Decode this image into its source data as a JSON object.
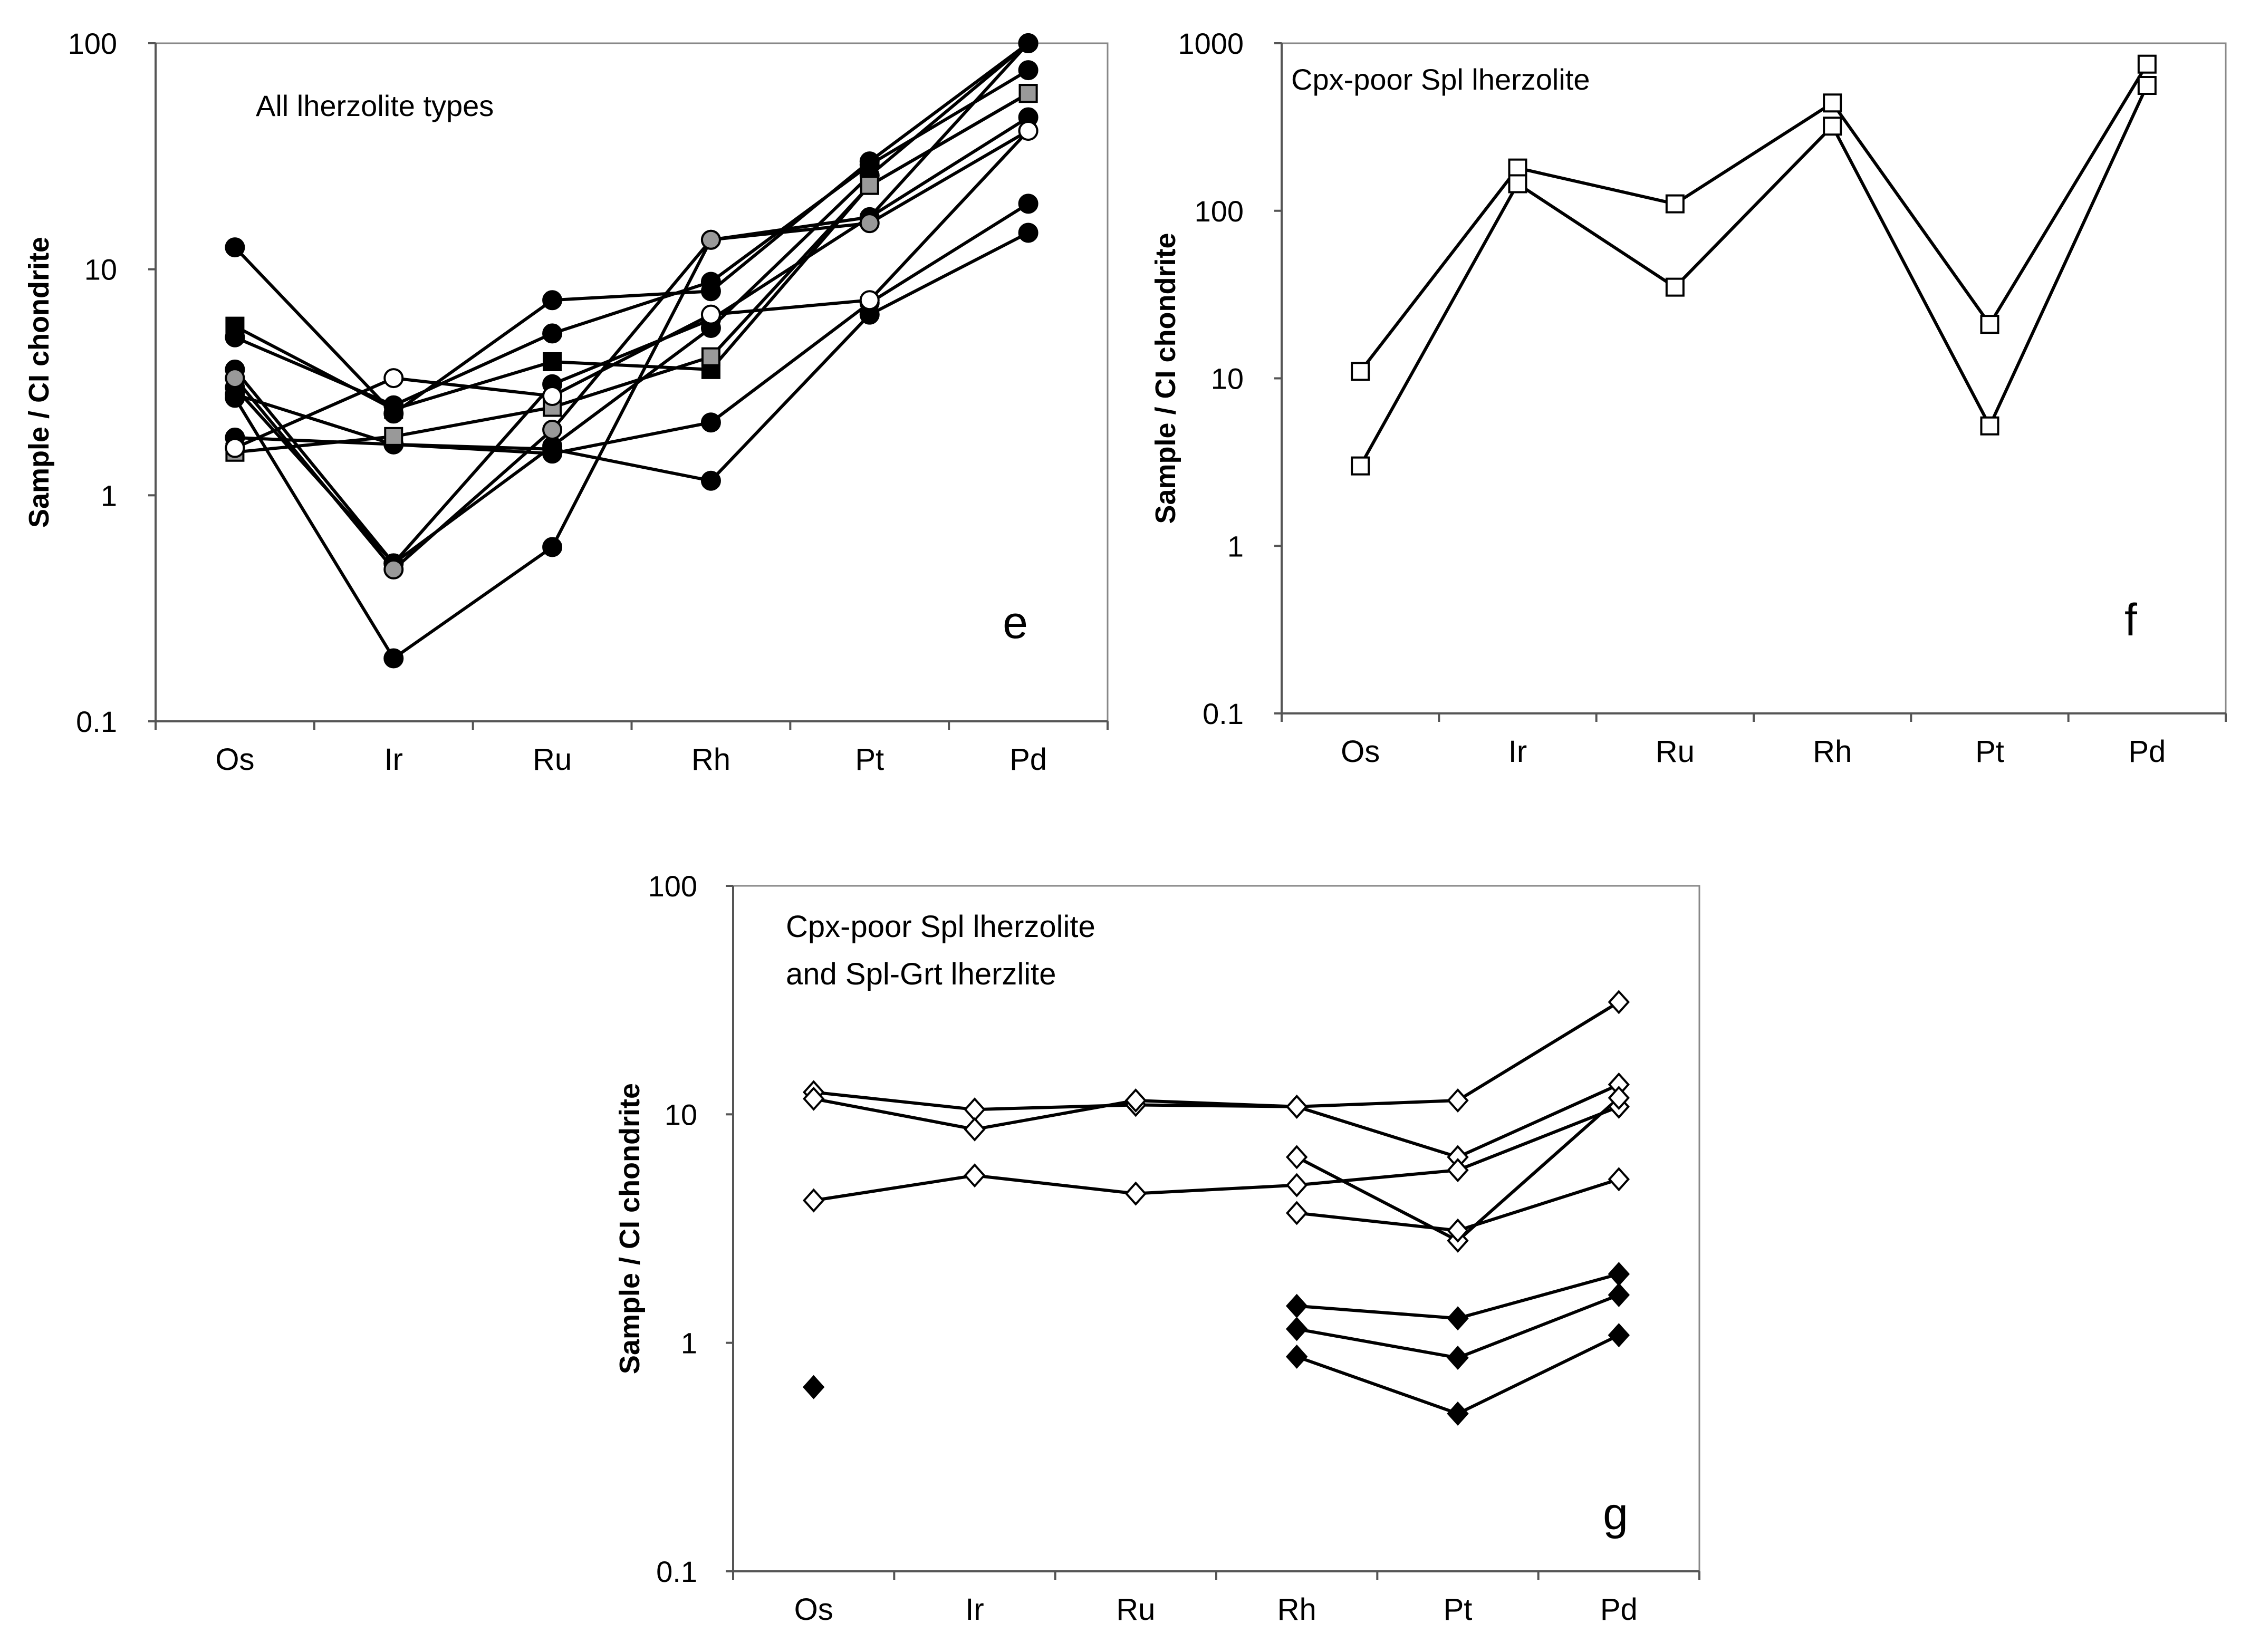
{
  "chart_data": [
    {
      "panel_id": "e",
      "type": "line",
      "scale": "log",
      "title": "All lherzolite types",
      "panel_letter": "e",
      "ylabel": "Sample / CI chondrite",
      "xlabel": "",
      "categories": [
        "Os",
        "Ir",
        "Ru",
        "Rh",
        "Pt",
        "Pd"
      ],
      "ylim": [
        0.1,
        100
      ],
      "yticks": [
        0.1,
        1,
        10,
        100
      ],
      "ytick_labels": [
        "0.1",
        "1",
        "10",
        "100"
      ],
      "grid": false,
      "legend": "none",
      "series": [
        {
          "name": "e1",
          "marker": "circle",
          "fill": "#000000",
          "values": [
            12.5,
            2.3,
            7.3,
            8.0,
            30,
            100
          ]
        },
        {
          "name": "e2",
          "marker": "circle",
          "fill": "#000000",
          "values": [
            5.0,
            2.5,
            5.2,
            8.8,
            29,
            76
          ]
        },
        {
          "name": "e3",
          "marker": "circle",
          "fill": "#000000",
          "values": [
            3.6,
            0.5,
            1.65,
            5.5,
            26,
            100
          ]
        },
        {
          "name": "e4",
          "marker": "circle",
          "fill": "#000000",
          "values": [
            3.0,
            0.5,
            3.1,
            6.0,
            17,
            100
          ]
        },
        {
          "name": "e5",
          "marker": "circle",
          "fill": "#000000",
          "values": [
            2.7,
            0.19,
            0.59,
            13.5,
            17,
            47
          ]
        },
        {
          "name": "e6",
          "marker": "circle",
          "fill": "#000000",
          "values": [
            2.8,
            1.68,
            1.53,
            2.1,
            7.1,
            19.5
          ]
        },
        {
          "name": "e7",
          "marker": "circle",
          "fill": "#000000",
          "values": [
            1.8,
            1.68,
            1.6,
            1.16,
            6.3,
            14.5
          ]
        },
        {
          "name": "e8",
          "marker": "circle",
          "fill": "#999999",
          "values": [
            3.3,
            0.47,
            1.95,
            13.5,
            16,
            41
          ]
        },
        {
          "name": "e9",
          "marker": "square",
          "fill": "#000000",
          "values": [
            5.6,
            2.4,
            3.9,
            3.6,
            23.5,
            60
          ]
        },
        {
          "name": "e10",
          "marker": "square",
          "fill": "#999999",
          "values": [
            1.55,
            1.82,
            2.45,
            4.1,
            23.5,
            60
          ]
        },
        {
          "name": "e11",
          "marker": "circle",
          "fill": "#ffffff",
          "values": [
            1.62,
            3.3,
            2.75,
            6.3,
            7.3,
            41
          ]
        }
      ]
    },
    {
      "panel_id": "f",
      "type": "line",
      "scale": "log",
      "title": "Cpx-poor Spl lherzolite",
      "panel_letter": "f",
      "ylabel": "Sample / CI chondrite",
      "xlabel": "",
      "categories": [
        "Os",
        "Ir",
        "Ru",
        "Rh",
        "Pt",
        "Pd"
      ],
      "ylim": [
        0.1,
        1000
      ],
      "yticks": [
        0.1,
        1,
        10,
        100,
        1000
      ],
      "ytick_labels": [
        "0.1",
        "1",
        "10",
        "100",
        "1000"
      ],
      "grid": false,
      "legend": "none",
      "series": [
        {
          "name": "f1",
          "marker": "square",
          "fill": "#ffffff",
          "values": [
            11,
            180,
            110,
            440,
            21,
            750
          ]
        },
        {
          "name": "f2",
          "marker": "square",
          "fill": "#ffffff",
          "values": [
            3.0,
            145,
            35,
            320,
            5.2,
            560
          ]
        }
      ]
    },
    {
      "panel_id": "g",
      "type": "line",
      "scale": "log",
      "title": "Cpx-poor Spl lherzolite\nand Spl-Grt lherzlite",
      "title_lines": [
        "Cpx-poor Spl lherzolite",
        "and Spl-Grt lherzlite"
      ],
      "panel_letter": "g",
      "ylabel": "Sample / CI chondrite",
      "xlabel": "",
      "categories": [
        "Os",
        "Ir",
        "Ru",
        "Rh",
        "Pt",
        "Pd"
      ],
      "ylim": [
        0.1,
        100
      ],
      "yticks": [
        0.1,
        1,
        10,
        100
      ],
      "ytick_labels": [
        "0.1",
        "1",
        "10",
        "100"
      ],
      "grid": false,
      "legend": "none",
      "series": [
        {
          "name": "g1",
          "marker": "diamond",
          "fill": "#ffffff",
          "values": [
            12.5,
            10.5,
            11.0,
            10.8,
            11.5,
            31
          ]
        },
        {
          "name": "g2",
          "marker": "diamond",
          "fill": "#ffffff",
          "values": [
            11.7,
            8.6,
            11.5,
            10.8,
            6.5,
            13.5
          ]
        },
        {
          "name": "g3",
          "marker": "diamond",
          "fill": "#ffffff",
          "values": [
            4.2,
            5.4,
            4.5,
            4.9,
            5.7,
            10.8
          ]
        },
        {
          "name": "g4",
          "marker": "diamond",
          "fill": "#ffffff",
          "values": [
            null,
            null,
            null,
            6.5,
            2.8,
            11.8
          ]
        },
        {
          "name": "g5",
          "marker": "diamond",
          "fill": "#ffffff",
          "values": [
            null,
            null,
            null,
            3.7,
            3.1,
            5.2
          ]
        },
        {
          "name": "g6",
          "marker": "diamond",
          "fill": "#000000",
          "values": [
            0.64,
            null,
            null,
            1.45,
            1.28,
            2.0
          ]
        },
        {
          "name": "g7",
          "marker": "diamond",
          "fill": "#000000",
          "values": [
            null,
            null,
            null,
            1.15,
            0.86,
            1.62
          ]
        },
        {
          "name": "g8",
          "marker": "diamond",
          "fill": "#000000",
          "values": [
            null,
            null,
            null,
            0.87,
            0.49,
            1.08
          ]
        }
      ]
    }
  ]
}
